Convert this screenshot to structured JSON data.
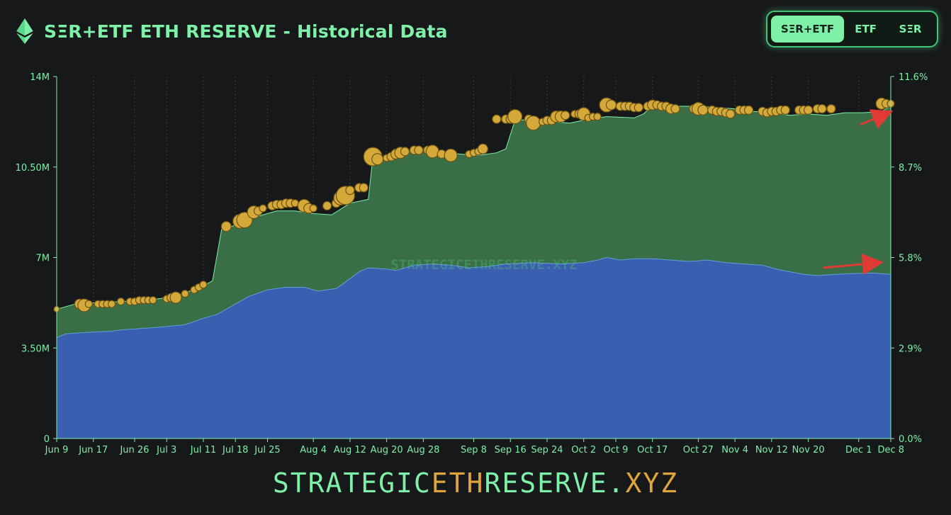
{
  "header": {
    "title": "SΞR+ETF ETH RESERVE - Historical Data",
    "logo_icon": "ethereum-icon"
  },
  "toggle": {
    "options": [
      "SΞR+ETF",
      "ETF",
      "SΞR"
    ],
    "selected": "SΞR+ETF"
  },
  "footer": {
    "part1": "STRATEGIC",
    "part2": "ETH",
    "part3": "RESERVE.",
    "part4": "XYZ"
  },
  "watermark": "STRATEGICETHRESERVE.XYZ",
  "colors": {
    "accent": "#7ef0a8",
    "etf_area": "#3b5fb0",
    "total_area": "#3a6e46",
    "bubble": "#d4a93a",
    "background": "#17181a",
    "annotation_arrow": "#e03a35"
  },
  "chart_data": {
    "type": "area",
    "title": "SΞR+ETF ETH RESERVE - Historical Data",
    "xlabel": "",
    "ylabel": "",
    "x_tick_labels": [
      "Jun 9",
      "Jun 17",
      "Jun 26",
      "Jul 3",
      "Jul 11",
      "Jul 18",
      "Jul 25",
      "Aug 4",
      "Aug 12",
      "Aug 20",
      "Aug 28",
      "Sep 8",
      "Sep 16",
      "Sep 24",
      "Oct 2",
      "Oct 9",
      "Oct 17",
      "Oct 27",
      "Nov 4",
      "Nov 12",
      "Nov 20",
      "Dec 1",
      "Dec 8"
    ],
    "y_left_ticks": [
      "0",
      "3.50M",
      "7M",
      "10.50M",
      "14M"
    ],
    "y_left_range": [
      0,
      14000000
    ],
    "y_right_ticks": [
      "0.0%",
      "2.9%",
      "5.8%",
      "8.7%",
      "11.6%"
    ],
    "y_right_range": [
      0,
      11.6
    ],
    "grid": "vertical dotted lines at x ticks",
    "x_index_range": [
      0,
      182
    ],
    "x_tick_index": [
      0,
      8,
      17,
      24,
      32,
      39,
      46,
      56,
      64,
      72,
      80,
      91,
      99,
      107,
      115,
      122,
      130,
      140,
      148,
      156,
      164,
      175,
      182
    ],
    "series": [
      {
        "name": "",
        "fill": "blue",
        "points": [
          [
            0,
            3.9
          ],
          [
            2,
            4.05
          ],
          [
            6,
            4.1
          ],
          [
            12,
            4.15
          ],
          [
            14,
            4.2
          ],
          [
            18,
            4.25
          ],
          [
            22,
            4.3
          ],
          [
            28,
            4.4
          ],
          [
            32,
            4.65
          ],
          [
            35,
            4.8
          ],
          [
            39,
            5.2
          ],
          [
            42,
            5.5
          ],
          [
            46,
            5.75
          ],
          [
            50,
            5.85
          ],
          [
            54,
            5.85
          ],
          [
            57,
            5.7
          ],
          [
            61,
            5.8
          ],
          [
            63,
            6.05
          ],
          [
            66,
            6.45
          ],
          [
            68,
            6.6
          ],
          [
            72,
            6.55
          ],
          [
            74,
            6.5
          ],
          [
            78,
            6.7
          ],
          [
            82,
            6.75
          ],
          [
            86,
            6.7
          ],
          [
            90,
            6.6
          ],
          [
            94,
            6.65
          ],
          [
            98,
            6.75
          ],
          [
            104,
            6.8
          ],
          [
            110,
            6.75
          ],
          [
            115,
            6.8
          ],
          [
            118,
            6.9
          ],
          [
            120,
            7.0
          ],
          [
            123,
            6.9
          ],
          [
            126,
            6.95
          ],
          [
            130,
            6.95
          ],
          [
            134,
            6.9
          ],
          [
            138,
            6.85
          ],
          [
            142,
            6.9
          ],
          [
            146,
            6.8
          ],
          [
            150,
            6.75
          ],
          [
            154,
            6.7
          ],
          [
            157,
            6.55
          ],
          [
            160,
            6.45
          ],
          [
            163,
            6.35
          ],
          [
            166,
            6.3
          ],
          [
            170,
            6.35
          ],
          [
            174,
            6.38
          ],
          [
            178,
            6.4
          ],
          [
            182,
            6.35
          ]
        ]
      },
      {
        "name": "",
        "fill": "green",
        "points": [
          [
            0,
            5.0
          ],
          [
            4,
            5.2
          ],
          [
            8,
            5.25
          ],
          [
            14,
            5.3
          ],
          [
            20,
            5.35
          ],
          [
            26,
            5.5
          ],
          [
            32,
            5.9
          ],
          [
            34,
            6.1
          ],
          [
            36,
            8.1
          ],
          [
            40,
            8.3
          ],
          [
            44,
            8.6
          ],
          [
            48,
            8.8
          ],
          [
            52,
            8.8
          ],
          [
            56,
            8.7
          ],
          [
            60,
            8.65
          ],
          [
            64,
            9.1
          ],
          [
            68,
            9.25
          ],
          [
            69,
            10.9
          ],
          [
            72,
            10.85
          ],
          [
            76,
            11.05
          ],
          [
            80,
            11.15
          ],
          [
            84,
            11.1
          ],
          [
            88,
            11.0
          ],
          [
            92,
            10.95
          ],
          [
            96,
            11.05
          ],
          [
            98,
            11.2
          ],
          [
            100,
            12.3
          ],
          [
            104,
            12.35
          ],
          [
            108,
            12.25
          ],
          [
            112,
            12.2
          ],
          [
            116,
            12.35
          ],
          [
            120,
            12.45
          ],
          [
            126,
            12.4
          ],
          [
            128,
            12.55
          ],
          [
            130,
            12.85
          ],
          [
            134,
            12.85
          ],
          [
            140,
            12.85
          ],
          [
            144,
            12.8
          ],
          [
            148,
            12.75
          ],
          [
            152,
            12.65
          ],
          [
            156,
            12.6
          ],
          [
            160,
            12.5
          ],
          [
            164,
            12.55
          ],
          [
            168,
            12.5
          ],
          [
            172,
            12.6
          ],
          [
            176,
            12.6
          ],
          [
            180,
            12.65
          ],
          [
            182,
            12.85
          ]
        ]
      }
    ],
    "bubbles": [
      [
        0,
        5.0,
        4
      ],
      [
        5,
        5.2,
        7
      ],
      [
        6,
        5.15,
        9
      ],
      [
        7,
        5.2,
        5
      ],
      [
        9,
        5.2,
        5
      ],
      [
        10,
        5.2,
        5
      ],
      [
        11,
        5.2,
        5
      ],
      [
        12,
        5.2,
        5
      ],
      [
        14,
        5.3,
        5
      ],
      [
        16,
        5.3,
        5
      ],
      [
        17,
        5.3,
        5
      ],
      [
        18,
        5.35,
        5
      ],
      [
        19,
        5.35,
        5
      ],
      [
        20,
        5.35,
        5
      ],
      [
        21,
        5.35,
        5
      ],
      [
        24,
        5.4,
        5
      ],
      [
        25,
        5.45,
        6
      ],
      [
        26,
        5.45,
        8
      ],
      [
        28,
        5.6,
        5
      ],
      [
        30,
        5.75,
        5
      ],
      [
        31,
        5.85,
        5
      ],
      [
        32,
        5.95,
        5
      ],
      [
        37,
        8.2,
        7
      ],
      [
        40,
        8.4,
        10
      ],
      [
        41,
        8.45,
        11
      ],
      [
        43,
        8.75,
        9
      ],
      [
        44,
        8.8,
        6
      ],
      [
        45,
        8.9,
        5
      ],
      [
        47,
        9.0,
        6
      ],
      [
        48,
        9.05,
        6
      ],
      [
        49,
        9.05,
        6
      ],
      [
        50,
        9.1,
        6
      ],
      [
        51,
        9.1,
        6
      ],
      [
        52,
        9.1,
        5
      ],
      [
        54,
        9.0,
        9
      ],
      [
        55,
        8.9,
        7
      ],
      [
        56,
        8.9,
        5
      ],
      [
        59,
        9.0,
        6
      ],
      [
        61,
        9.1,
        6
      ],
      [
        62,
        9.3,
        10
      ],
      [
        63,
        9.4,
        13
      ],
      [
        64,
        9.6,
        6
      ],
      [
        66,
        9.7,
        6
      ],
      [
        67,
        9.7,
        6
      ],
      [
        69,
        10.9,
        13
      ],
      [
        70,
        10.8,
        8
      ],
      [
        72,
        10.85,
        5
      ],
      [
        73,
        10.9,
        6
      ],
      [
        74,
        11.0,
        7
      ],
      [
        75,
        11.05,
        8
      ],
      [
        76,
        11.1,
        6
      ],
      [
        78,
        11.15,
        6
      ],
      [
        79,
        11.15,
        6
      ],
      [
        81,
        11.15,
        6
      ],
      [
        82,
        11.1,
        9
      ],
      [
        84,
        11.0,
        6
      ],
      [
        86,
        10.95,
        9
      ],
      [
        90,
        11.0,
        5
      ],
      [
        91,
        11.05,
        5
      ],
      [
        92,
        11.1,
        5
      ],
      [
        93,
        11.2,
        7
      ],
      [
        96,
        12.35,
        6
      ],
      [
        98,
        12.35,
        6
      ],
      [
        99,
        12.35,
        6
      ],
      [
        100,
        12.45,
        10
      ],
      [
        103,
        12.35,
        6
      ],
      [
        104,
        12.2,
        10
      ],
      [
        106,
        12.25,
        5
      ],
      [
        107,
        12.3,
        6
      ],
      [
        108,
        12.3,
        6
      ],
      [
        109,
        12.45,
        8
      ],
      [
        110,
        12.45,
        8
      ],
      [
        111,
        12.5,
        6
      ],
      [
        113,
        12.55,
        5
      ],
      [
        114,
        12.55,
        6
      ],
      [
        115,
        12.55,
        9
      ],
      [
        116,
        12.4,
        5
      ],
      [
        117,
        12.45,
        5
      ],
      [
        118,
        12.45,
        5
      ],
      [
        120,
        12.9,
        10
      ],
      [
        121,
        12.9,
        7
      ],
      [
        123,
        12.85,
        6
      ],
      [
        124,
        12.85,
        6
      ],
      [
        125,
        12.85,
        6
      ],
      [
        126,
        12.8,
        6
      ],
      [
        127,
        12.8,
        6
      ],
      [
        129,
        12.85,
        6
      ],
      [
        130,
        12.9,
        7
      ],
      [
        131,
        12.9,
        6
      ],
      [
        132,
        12.85,
        6
      ],
      [
        133,
        12.85,
        6
      ],
      [
        134,
        12.75,
        7
      ],
      [
        135,
        12.75,
        6
      ],
      [
        139,
        12.75,
        6
      ],
      [
        140,
        12.75,
        9
      ],
      [
        141,
        12.7,
        7
      ],
      [
        143,
        12.7,
        6
      ],
      [
        144,
        12.65,
        6
      ],
      [
        145,
        12.65,
        6
      ],
      [
        146,
        12.6,
        6
      ],
      [
        147,
        12.55,
        6
      ],
      [
        149,
        12.7,
        6
      ],
      [
        150,
        12.7,
        6
      ],
      [
        151,
        12.7,
        6
      ],
      [
        154,
        12.65,
        6
      ],
      [
        155,
        12.6,
        6
      ],
      [
        156,
        12.65,
        6
      ],
      [
        157,
        12.65,
        6
      ],
      [
        158,
        12.7,
        6
      ],
      [
        159,
        12.7,
        6
      ],
      [
        162,
        12.7,
        6
      ],
      [
        163,
        12.7,
        6
      ],
      [
        164,
        12.7,
        6
      ],
      [
        166,
        12.75,
        6
      ],
      [
        167,
        12.75,
        6
      ],
      [
        169,
        12.75,
        6
      ],
      [
        180,
        12.95,
        8
      ],
      [
        181,
        12.95,
        6
      ],
      [
        182,
        12.95,
        5
      ]
    ]
  }
}
